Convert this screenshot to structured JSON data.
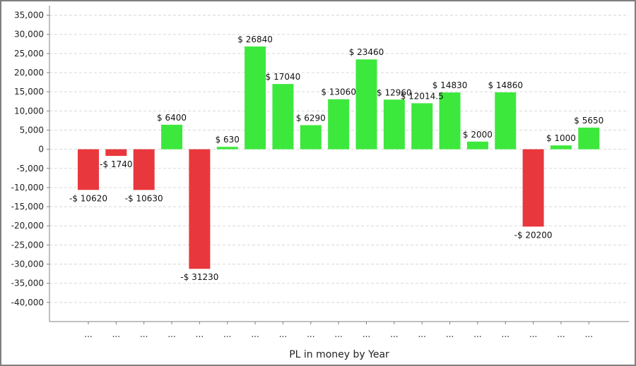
{
  "chart_data": {
    "type": "bar",
    "title": "",
    "xlabel": "PL in money by Year",
    "ylabel": "",
    "ylim": [
      -45000,
      37500
    ],
    "yticks": [
      35000,
      30000,
      25000,
      20000,
      15000,
      10000,
      5000,
      0,
      -5000,
      -10000,
      -15000,
      -20000,
      -25000,
      -30000,
      -35000,
      -40000
    ],
    "ytick_labels": [
      "35,000",
      "30,000",
      "25,000",
      "20,000",
      "15,000",
      "10,000",
      "5,000",
      "0",
      "-5,000",
      "-10,000",
      "-15,000",
      "-20,000",
      "-25,000",
      "-30,000",
      "-35,000",
      "-40,000"
    ],
    "categories": [
      "...",
      "...",
      "...",
      "...",
      "...",
      "...",
      "...",
      "...",
      "...",
      "...",
      "...",
      "...",
      "...",
      "...",
      "...",
      "...",
      "...",
      "...",
      "..."
    ],
    "values": [
      -10620,
      -1740,
      -10630,
      6400,
      -31230,
      630,
      26840,
      17040,
      6290,
      13060,
      23460,
      12960,
      12014.5,
      14830,
      2000,
      14860,
      -20200,
      1000,
      5650
    ],
    "data_labels": [
      "-$ 10620",
      "-$ 1740",
      "-$ 10630",
      "$ 6400",
      "-$ 31230",
      "$ 630",
      "$ 26840",
      "$ 17040",
      "$ 6290",
      "$ 13060",
      "$ 23460",
      "$ 12960",
      "$ 12014.5",
      "$ 14830",
      "$ 2000",
      "$ 14860",
      "-$ 20200",
      "$ 1000",
      "$ 5650"
    ],
    "grid": true,
    "colors": {
      "positive": "#3de83d",
      "negative": "#e8383d",
      "grid": "#d8d8d8",
      "axis": "#808080"
    }
  }
}
